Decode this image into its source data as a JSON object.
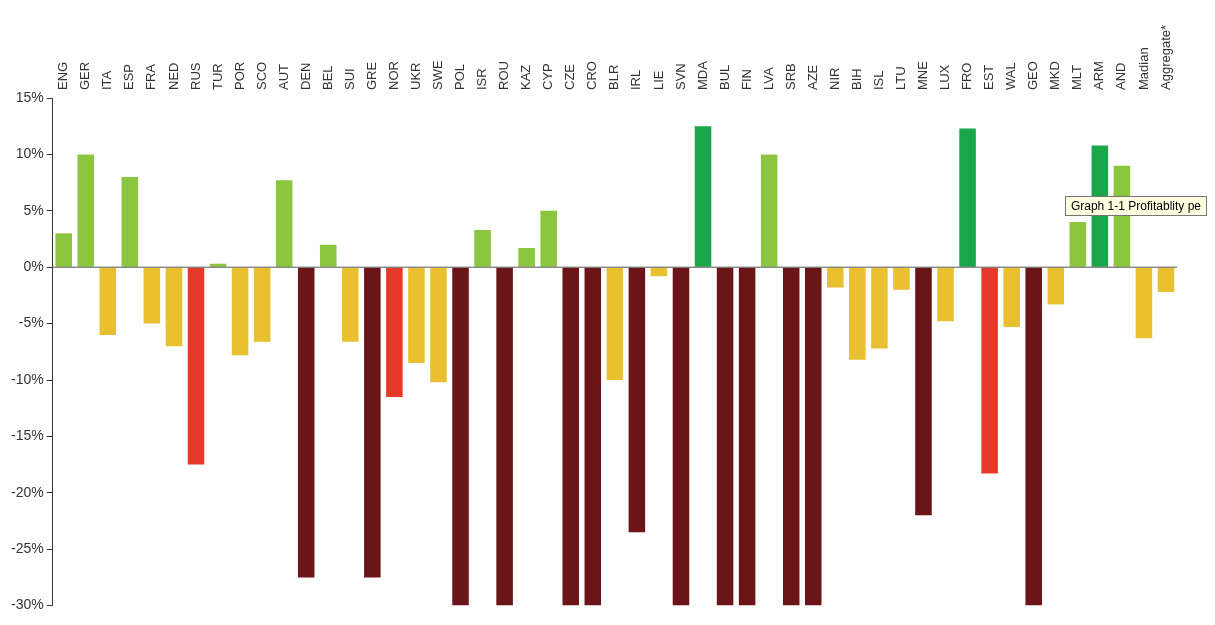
{
  "chart_data": {
    "type": "bar",
    "categories": [
      "ENG",
      "GER",
      "ITA",
      "ESP",
      "FRA",
      "NED",
      "RUS",
      "TUR",
      "POR",
      "SCO",
      "AUT",
      "DEN",
      "BEL",
      "SUI",
      "GRE",
      "NOR",
      "UKR",
      "SWE",
      "POL",
      "ISR",
      "ROU",
      "KAZ",
      "CYP",
      "CZE",
      "CRO",
      "BLR",
      "IRL",
      "LIE",
      "SVN",
      "MDA",
      "BUL",
      "FIN",
      "LVA",
      "SRB",
      "AZE",
      "NIR",
      "BIH",
      "ISL",
      "LTU",
      "MNE",
      "LUX",
      "FRO",
      "EST",
      "WAL",
      "GEO",
      "MKD",
      "MLT",
      "ARM",
      "AND",
      "Madian",
      "Aggregate*"
    ],
    "values": [
      3,
      10,
      -6,
      8,
      -5,
      -7,
      -17.5,
      0.3,
      -7.8,
      -6.6,
      7.7,
      -27.5,
      2,
      -6.6,
      -27.5,
      -11.5,
      -8.5,
      -10.2,
      -30,
      3.3,
      -30,
      1.7,
      5,
      -30,
      -30,
      -10,
      -23.5,
      -0.8,
      -30,
      12.5,
      -30,
      -30,
      10,
      -30,
      -30,
      -1.8,
      -8.2,
      -7.2,
      -2,
      -22,
      -4.8,
      12.3,
      -18.3,
      -5.3,
      -30,
      -3.3,
      4,
      10.8,
      9,
      -6.3,
      -2.2
    ],
    "colors": [
      "#8cc63f",
      "#8cc63f",
      "#e8c030",
      "#8cc63f",
      "#e8c030",
      "#e8c030",
      "#e53a2a",
      "#8cc63f",
      "#e8c030",
      "#e8c030",
      "#8cc63f",
      "#6b1519",
      "#8cc63f",
      "#e8c030",
      "#6b1519",
      "#e53a2a",
      "#e8c030",
      "#e8c030",
      "#6b1519",
      "#8cc63f",
      "#6b1519",
      "#8cc63f",
      "#8cc63f",
      "#6b1519",
      "#6b1519",
      "#e8c030",
      "#6b1519",
      "#e8c030",
      "#6b1519",
      "#1aa64a",
      "#6b1519",
      "#6b1519",
      "#8cc63f",
      "#6b1519",
      "#6b1519",
      "#e8c030",
      "#e8c030",
      "#e8c030",
      "#e8c030",
      "#6b1519",
      "#e8c030",
      "#1aa64a",
      "#e53a2a",
      "#e8c030",
      "#6b1519",
      "#e8c030",
      "#8cc63f",
      "#1aa64a",
      "#8cc63f",
      "#e8c030",
      "#e8c030"
    ],
    "ylim": [
      -30,
      15
    ],
    "yticks": [
      {
        "value": 15,
        "label": "15%"
      },
      {
        "value": 10,
        "label": "10%"
      },
      {
        "value": 5,
        "label": "5%"
      },
      {
        "value": 0,
        "label": "0%"
      },
      {
        "value": -5,
        "label": "-5%"
      },
      {
        "value": -10,
        "label": "-10%"
      },
      {
        "value": -15,
        "label": "-15%"
      },
      {
        "value": -20,
        "label": "-20%"
      },
      {
        "value": -25,
        "label": "-25%"
      },
      {
        "value": -30,
        "label": "-30%"
      }
    ],
    "grid": false,
    "ref_lines": [
      {
        "axis": "y",
        "value": 0,
        "color": "#555555"
      }
    ],
    "legend": false,
    "annotations": [
      "Graph 1-1 Profitablity pe"
    ]
  }
}
